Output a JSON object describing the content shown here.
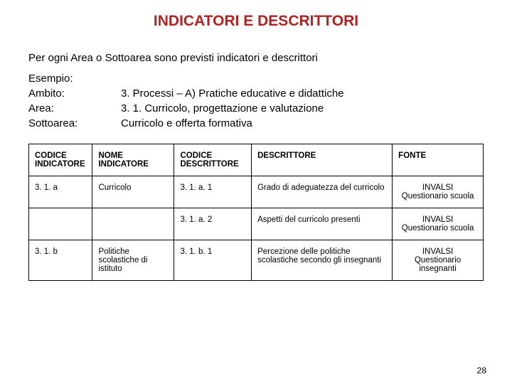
{
  "title": "INDICATORI E DESCRITTORI",
  "title_color": "#b22222",
  "intro": "Per ogni Area o Sottoarea sono previsti indicatori e descrittori",
  "defs": [
    {
      "label": "Esempio:",
      "value": ""
    },
    {
      "label": "Ambito:",
      "value": "3. Processi – A) Pratiche educative e didattiche"
    },
    {
      "label": "Area:",
      "value": "3. 1. Curricolo, progettazione e valutazione"
    },
    {
      "label": "Sottoarea:",
      "value": "Curricolo e offerta formativa"
    }
  ],
  "table": {
    "columns": [
      "CODICE INDICATORE",
      "NOME INDICATORE",
      "CODICE DESCRITTORE",
      "DESCRITTORE",
      "FONTE"
    ],
    "rows": [
      [
        "3. 1. a",
        "Curricolo",
        "3. 1. a. 1",
        "Grado di adeguatezza del curricolo",
        "INVALSI Questionario scuola"
      ],
      [
        "",
        "",
        "3. 1. a. 2",
        "Aspetti del curricolo presenti",
        "INVALSI Questionario scuola"
      ],
      [
        "3. 1. b",
        "Politiche scolastiche di istituto",
        "3. 1. b. 1",
        "Percezione delle politiche scolastiche secondo gli insegnanti",
        "INVALSI Questionario insegnanti"
      ]
    ]
  },
  "page_number": "28"
}
